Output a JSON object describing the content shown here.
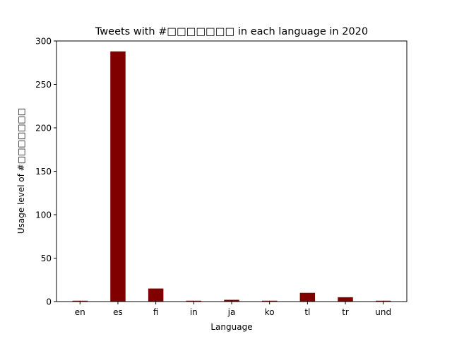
{
  "chart_data": {
    "type": "bar",
    "title": "Tweets with #□□□□□□□ in each language in 2020",
    "xlabel": "Language",
    "ylabel": "Usage level of #□□□□□□□",
    "categories": [
      "en",
      "es",
      "fi",
      "in",
      "ja",
      "ko",
      "tl",
      "tr",
      "und"
    ],
    "values": [
      1,
      288,
      15,
      1,
      2,
      1,
      10,
      5,
      1
    ],
    "ylim": [
      0,
      300
    ],
    "yticks": [
      0,
      50,
      100,
      150,
      200,
      250,
      300
    ],
    "bar_color": "#800000",
    "grid": false,
    "legend": "none"
  }
}
